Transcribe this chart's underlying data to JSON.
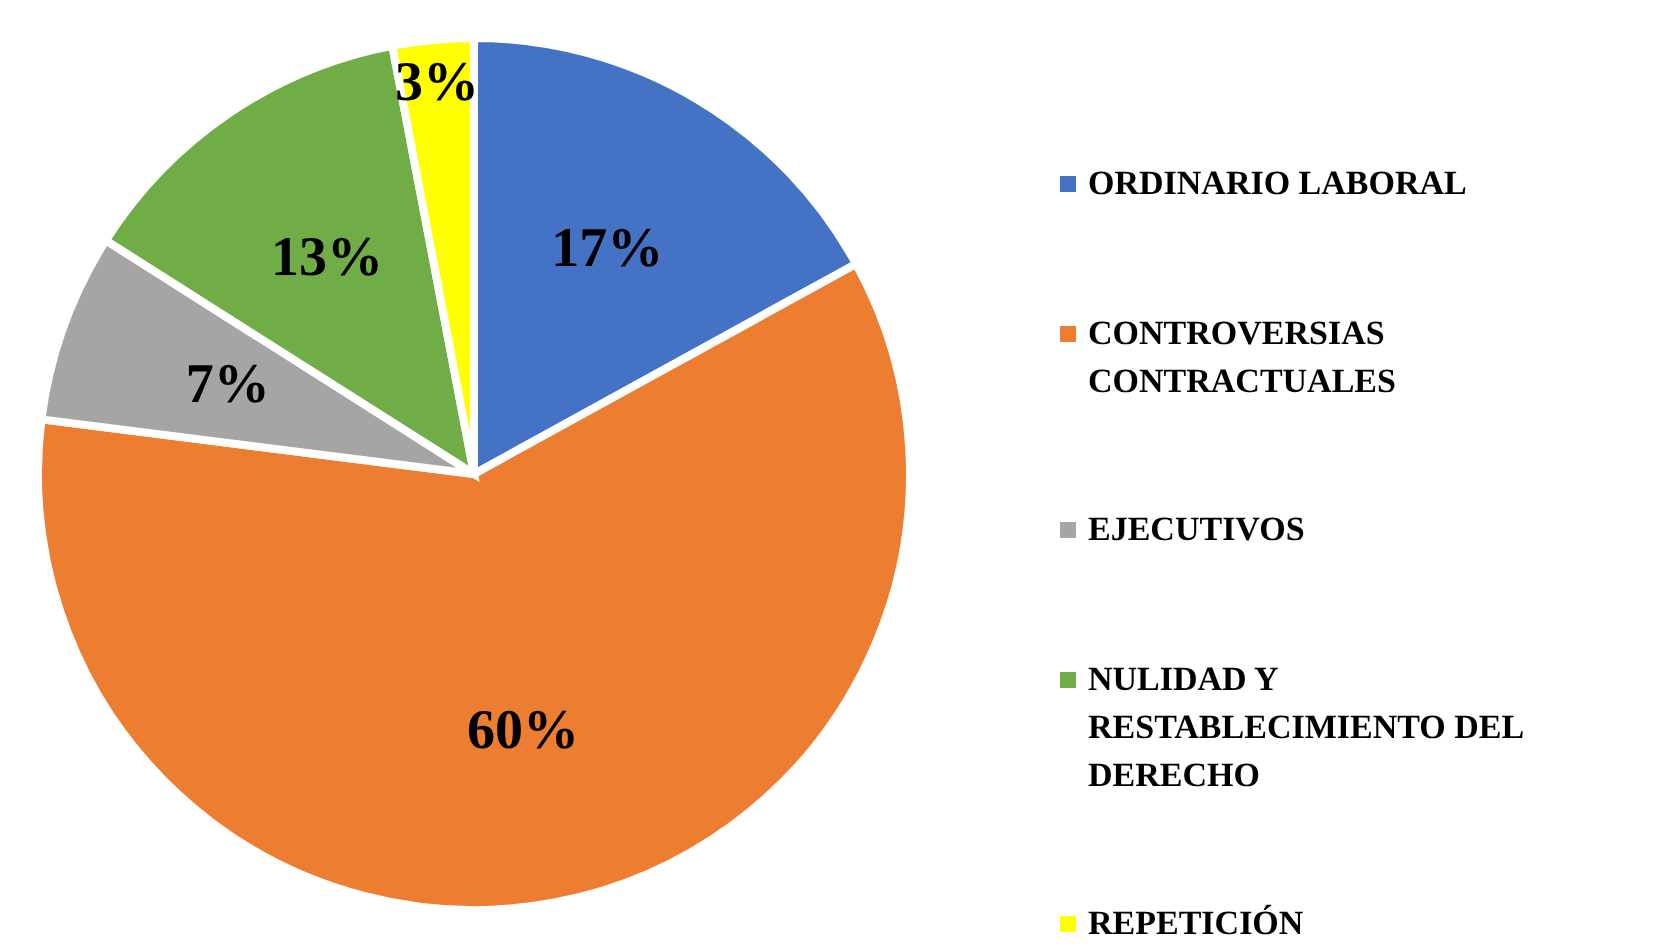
{
  "chart_data": {
    "type": "pie",
    "categories": [
      "ORDINARIO LABORAL",
      "CONTROVERSIAS CONTRACTUALES",
      "EJECUTIVOS",
      "NULIDAD Y RESTABLECIMIENTO DEL DERECHO",
      "REPETICIÓN"
    ],
    "values": [
      17,
      60,
      7,
      13,
      3
    ],
    "colors": [
      "#4472c4",
      "#ed7d31",
      "#a5a5a5",
      "#70ad47",
      "#ffff00"
    ],
    "value_labels": [
      "17%",
      "60%",
      "7%",
      "13%",
      "3%"
    ],
    "legend": "right"
  }
}
